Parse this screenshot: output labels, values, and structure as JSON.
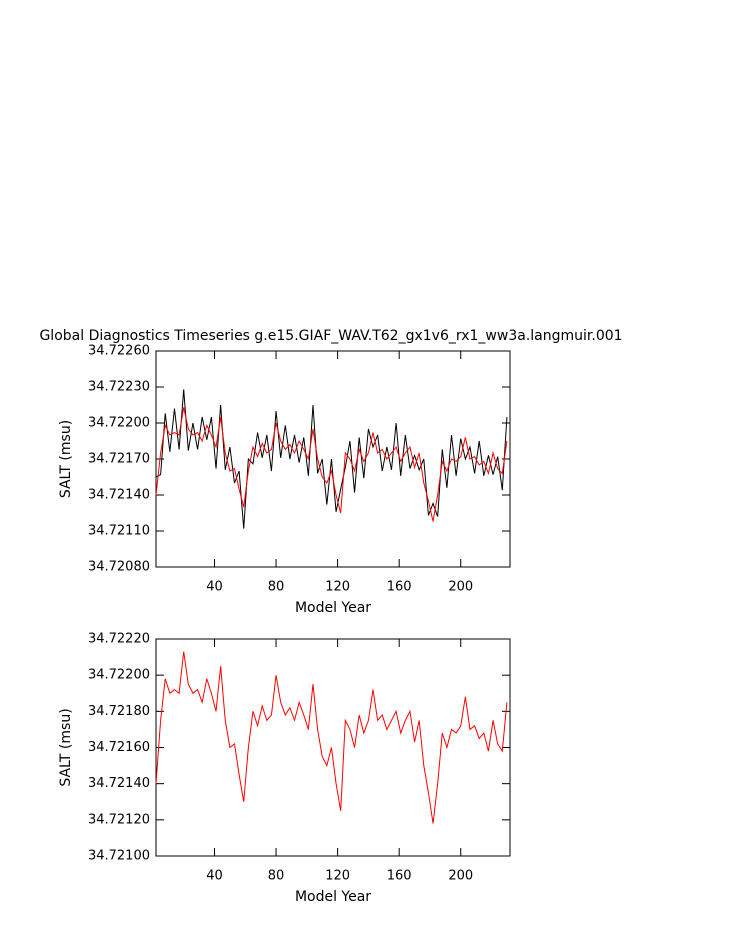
{
  "chart_data": [
    {
      "type": "line",
      "title": "Global Diagnostics Timeseries g.e15.GIAF_WAV.T62_gx1v6_rx1_ww3a.langmuir.001",
      "xlabel": "Model Year",
      "ylabel": "SALT (msu)",
      "x": [
        2,
        5,
        8,
        11,
        14,
        17,
        20,
        23,
        26,
        29,
        32,
        35,
        38,
        41,
        44,
        47,
        50,
        53,
        56,
        59,
        62,
        65,
        68,
        71,
        74,
        77,
        80,
        83,
        86,
        89,
        92,
        95,
        98,
        101,
        104,
        107,
        110,
        113,
        116,
        119,
        122,
        125,
        128,
        131,
        134,
        137,
        140,
        143,
        146,
        149,
        152,
        155,
        158,
        161,
        164,
        167,
        170,
        173,
        176,
        179,
        182,
        185,
        188,
        191,
        194,
        197,
        200,
        203,
        206,
        209,
        212,
        215,
        218,
        221,
        224,
        227,
        230
      ],
      "series": [
        {
          "color": "#000000",
          "values": [
            34.72155,
            34.72157,
            34.72208,
            34.72176,
            34.72212,
            34.72178,
            34.72228,
            34.72177,
            34.722,
            34.72178,
            34.72205,
            34.72186,
            34.72205,
            34.72162,
            34.72215,
            34.72161,
            34.7218,
            34.7215,
            34.7216,
            34.72112,
            34.7217,
            34.72166,
            34.72192,
            34.72171,
            34.7219,
            34.7216,
            34.7221,
            34.72171,
            34.72198,
            34.7217,
            34.7219,
            34.72167,
            34.72188,
            34.72156,
            34.72215,
            34.72158,
            34.7217,
            34.72132,
            34.7217,
            34.72126,
            34.72145,
            34.72163,
            34.72185,
            34.72142,
            34.72188,
            34.72154,
            34.72195,
            34.7218,
            34.7219,
            34.7216,
            34.7218,
            34.72161,
            34.722,
            34.72156,
            34.7219,
            34.72162,
            34.72173,
            34.72161,
            34.7217,
            34.72123,
            34.72133,
            34.72122,
            34.72178,
            34.72146,
            34.7219,
            34.72156,
            34.72187,
            34.7217,
            34.7218,
            34.72158,
            34.72185,
            34.72156,
            34.72173,
            34.72157,
            34.72172,
            34.72144,
            34.72205
          ]
        },
        {
          "color": "#ff0000",
          "values": [
            34.7214,
            34.72175,
            34.72198,
            34.7219,
            34.72192,
            34.7219,
            34.72213,
            34.72195,
            34.7219,
            34.72192,
            34.72185,
            34.72198,
            34.7219,
            34.7218,
            34.72205,
            34.72175,
            34.7216,
            34.72162,
            34.72145,
            34.7213,
            34.7216,
            34.7218,
            34.72172,
            34.72183,
            34.72175,
            34.72178,
            34.722,
            34.72185,
            34.72178,
            34.72182,
            34.72175,
            34.72185,
            34.72178,
            34.7217,
            34.72195,
            34.7217,
            34.72155,
            34.7215,
            34.7216,
            34.7214,
            34.72125,
            34.72175,
            34.7217,
            34.7216,
            34.72178,
            34.72168,
            34.72175,
            34.72192,
            34.72175,
            34.72178,
            34.7217,
            34.72175,
            34.7218,
            34.72168,
            34.72175,
            34.7218,
            34.72163,
            34.72175,
            34.7215,
            34.72135,
            34.72118,
            34.7214,
            34.72168,
            34.7216,
            34.7217,
            34.72168,
            34.72172,
            34.72188,
            34.7217,
            34.72172,
            34.72165,
            34.72168,
            34.72158,
            34.72175,
            34.72162,
            34.72158,
            34.72185
          ]
        }
      ],
      "xlim": [
        2,
        232
      ],
      "xticks": [
        40,
        80,
        120,
        160,
        200
      ],
      "ylim": [
        34.7208,
        34.7226
      ],
      "yticks": [
        {
          "value": 34.7208,
          "label": "34.72080"
        },
        {
          "value": 34.7211,
          "label": "34.72110"
        },
        {
          "value": 34.7214,
          "label": "34.72140"
        },
        {
          "value": 34.7217,
          "label": "34.72170"
        },
        {
          "value": 34.722,
          "label": "34.72200"
        },
        {
          "value": 34.7223,
          "label": "34.72230"
        },
        {
          "value": 34.7226,
          "label": "34.72260"
        }
      ]
    },
    {
      "type": "line",
      "xlabel": "Model Year",
      "ylabel": "SALT (msu)",
      "x": [
        2,
        5,
        8,
        11,
        14,
        17,
        20,
        23,
        26,
        29,
        32,
        35,
        38,
        41,
        44,
        47,
        50,
        53,
        56,
        59,
        62,
        65,
        68,
        71,
        74,
        77,
        80,
        83,
        86,
        89,
        92,
        95,
        98,
        101,
        104,
        107,
        110,
        113,
        116,
        119,
        122,
        125,
        128,
        131,
        134,
        137,
        140,
        143,
        146,
        149,
        152,
        155,
        158,
        161,
        164,
        167,
        170,
        173,
        176,
        179,
        182,
        185,
        188,
        191,
        194,
        197,
        200,
        203,
        206,
        209,
        212,
        215,
        218,
        221,
        224,
        227,
        230
      ],
      "series": [
        {
          "color": "#ff0000",
          "values": [
            34.7214,
            34.72175,
            34.72198,
            34.7219,
            34.72192,
            34.7219,
            34.72213,
            34.72195,
            34.7219,
            34.72192,
            34.72185,
            34.72198,
            34.7219,
            34.7218,
            34.72205,
            34.72175,
            34.7216,
            34.72162,
            34.72145,
            34.7213,
            34.7216,
            34.7218,
            34.72172,
            34.72183,
            34.72175,
            34.72178,
            34.722,
            34.72185,
            34.72178,
            34.72182,
            34.72175,
            34.72185,
            34.72178,
            34.7217,
            34.72195,
            34.7217,
            34.72155,
            34.7215,
            34.7216,
            34.7214,
            34.72125,
            34.72175,
            34.7217,
            34.7216,
            34.72178,
            34.72168,
            34.72175,
            34.72192,
            34.72175,
            34.72178,
            34.7217,
            34.72175,
            34.7218,
            34.72168,
            34.72175,
            34.7218,
            34.72163,
            34.72175,
            34.7215,
            34.72135,
            34.72118,
            34.7214,
            34.72168,
            34.7216,
            34.7217,
            34.72168,
            34.72172,
            34.72188,
            34.7217,
            34.72172,
            34.72165,
            34.72168,
            34.72158,
            34.72175,
            34.72162,
            34.72158,
            34.72185
          ]
        }
      ],
      "xlim": [
        2,
        232
      ],
      "xticks": [
        40,
        80,
        120,
        160,
        200
      ],
      "ylim": [
        34.721,
        34.7222
      ],
      "yticks": [
        {
          "value": 34.721,
          "label": "34.72100"
        },
        {
          "value": 34.7212,
          "label": "34.72120"
        },
        {
          "value": 34.7214,
          "label": "34.72140"
        },
        {
          "value": 34.7216,
          "label": "34.72160"
        },
        {
          "value": 34.7218,
          "label": "34.72180"
        },
        {
          "value": 34.722,
          "label": "34.72200"
        },
        {
          "value": 34.7222,
          "label": "34.72220"
        }
      ]
    }
  ]
}
